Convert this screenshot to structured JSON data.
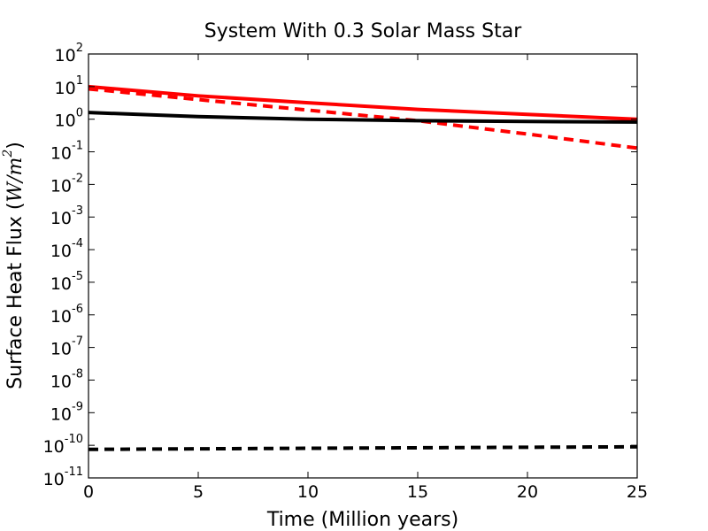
{
  "chart_data": {
    "type": "line",
    "title": "System With 0.3 Solar Mass Star",
    "xlabel": "Time  (Million years)",
    "ylabel_main": "Surface Heat Flux  (",
    "ylabel_unit": "W/m",
    "ylabel_unit_exp": "2",
    "ylabel_close": ")",
    "xlim": [
      0,
      25
    ],
    "ylim": [
      1e-11,
      100
    ],
    "yscale": "log",
    "grid": false,
    "x_ticks": [
      0,
      5,
      10,
      15,
      20,
      25
    ],
    "x_tick_labels": [
      "0",
      "5",
      "10",
      "15",
      "20",
      "25"
    ],
    "y_ticks": [
      1e-11,
      1e-10,
      1e-09,
      1e-08,
      1e-07,
      1e-06,
      1e-05,
      0.0001,
      0.001,
      0.01,
      0.1,
      1,
      10,
      100
    ],
    "y_tick_exponents": [
      "-11",
      "-10",
      "-9",
      "-8",
      "-7",
      "-6",
      "-5",
      "-4",
      "-3",
      "-2",
      "-1",
      "0",
      "1",
      "2"
    ],
    "y_tick_base": "10",
    "series": [
      {
        "color": "#ff0000",
        "style": "solid",
        "x": [
          0,
          5,
          10,
          15,
          20,
          25
        ],
        "y": [
          10,
          5.2,
          3.2,
          2.0,
          1.4,
          1.0
        ]
      },
      {
        "color": "#ff0000",
        "style": "dashed",
        "x": [
          0,
          5,
          10,
          15,
          20,
          25
        ],
        "y": [
          8.5,
          4.0,
          1.9,
          0.9,
          0.35,
          0.13
        ]
      },
      {
        "color": "#000000",
        "style": "solid",
        "x": [
          0,
          5,
          10,
          15,
          20,
          25
        ],
        "y": [
          1.6,
          1.2,
          1.0,
          0.9,
          0.85,
          0.82
        ]
      },
      {
        "color": "#000000",
        "style": "dashed",
        "x": [
          0,
          5,
          10,
          15,
          20,
          25
        ],
        "y": [
          7.5e-11,
          7.8e-11,
          8.1e-11,
          8.4e-11,
          8.7e-11,
          9e-11
        ]
      }
    ]
  }
}
